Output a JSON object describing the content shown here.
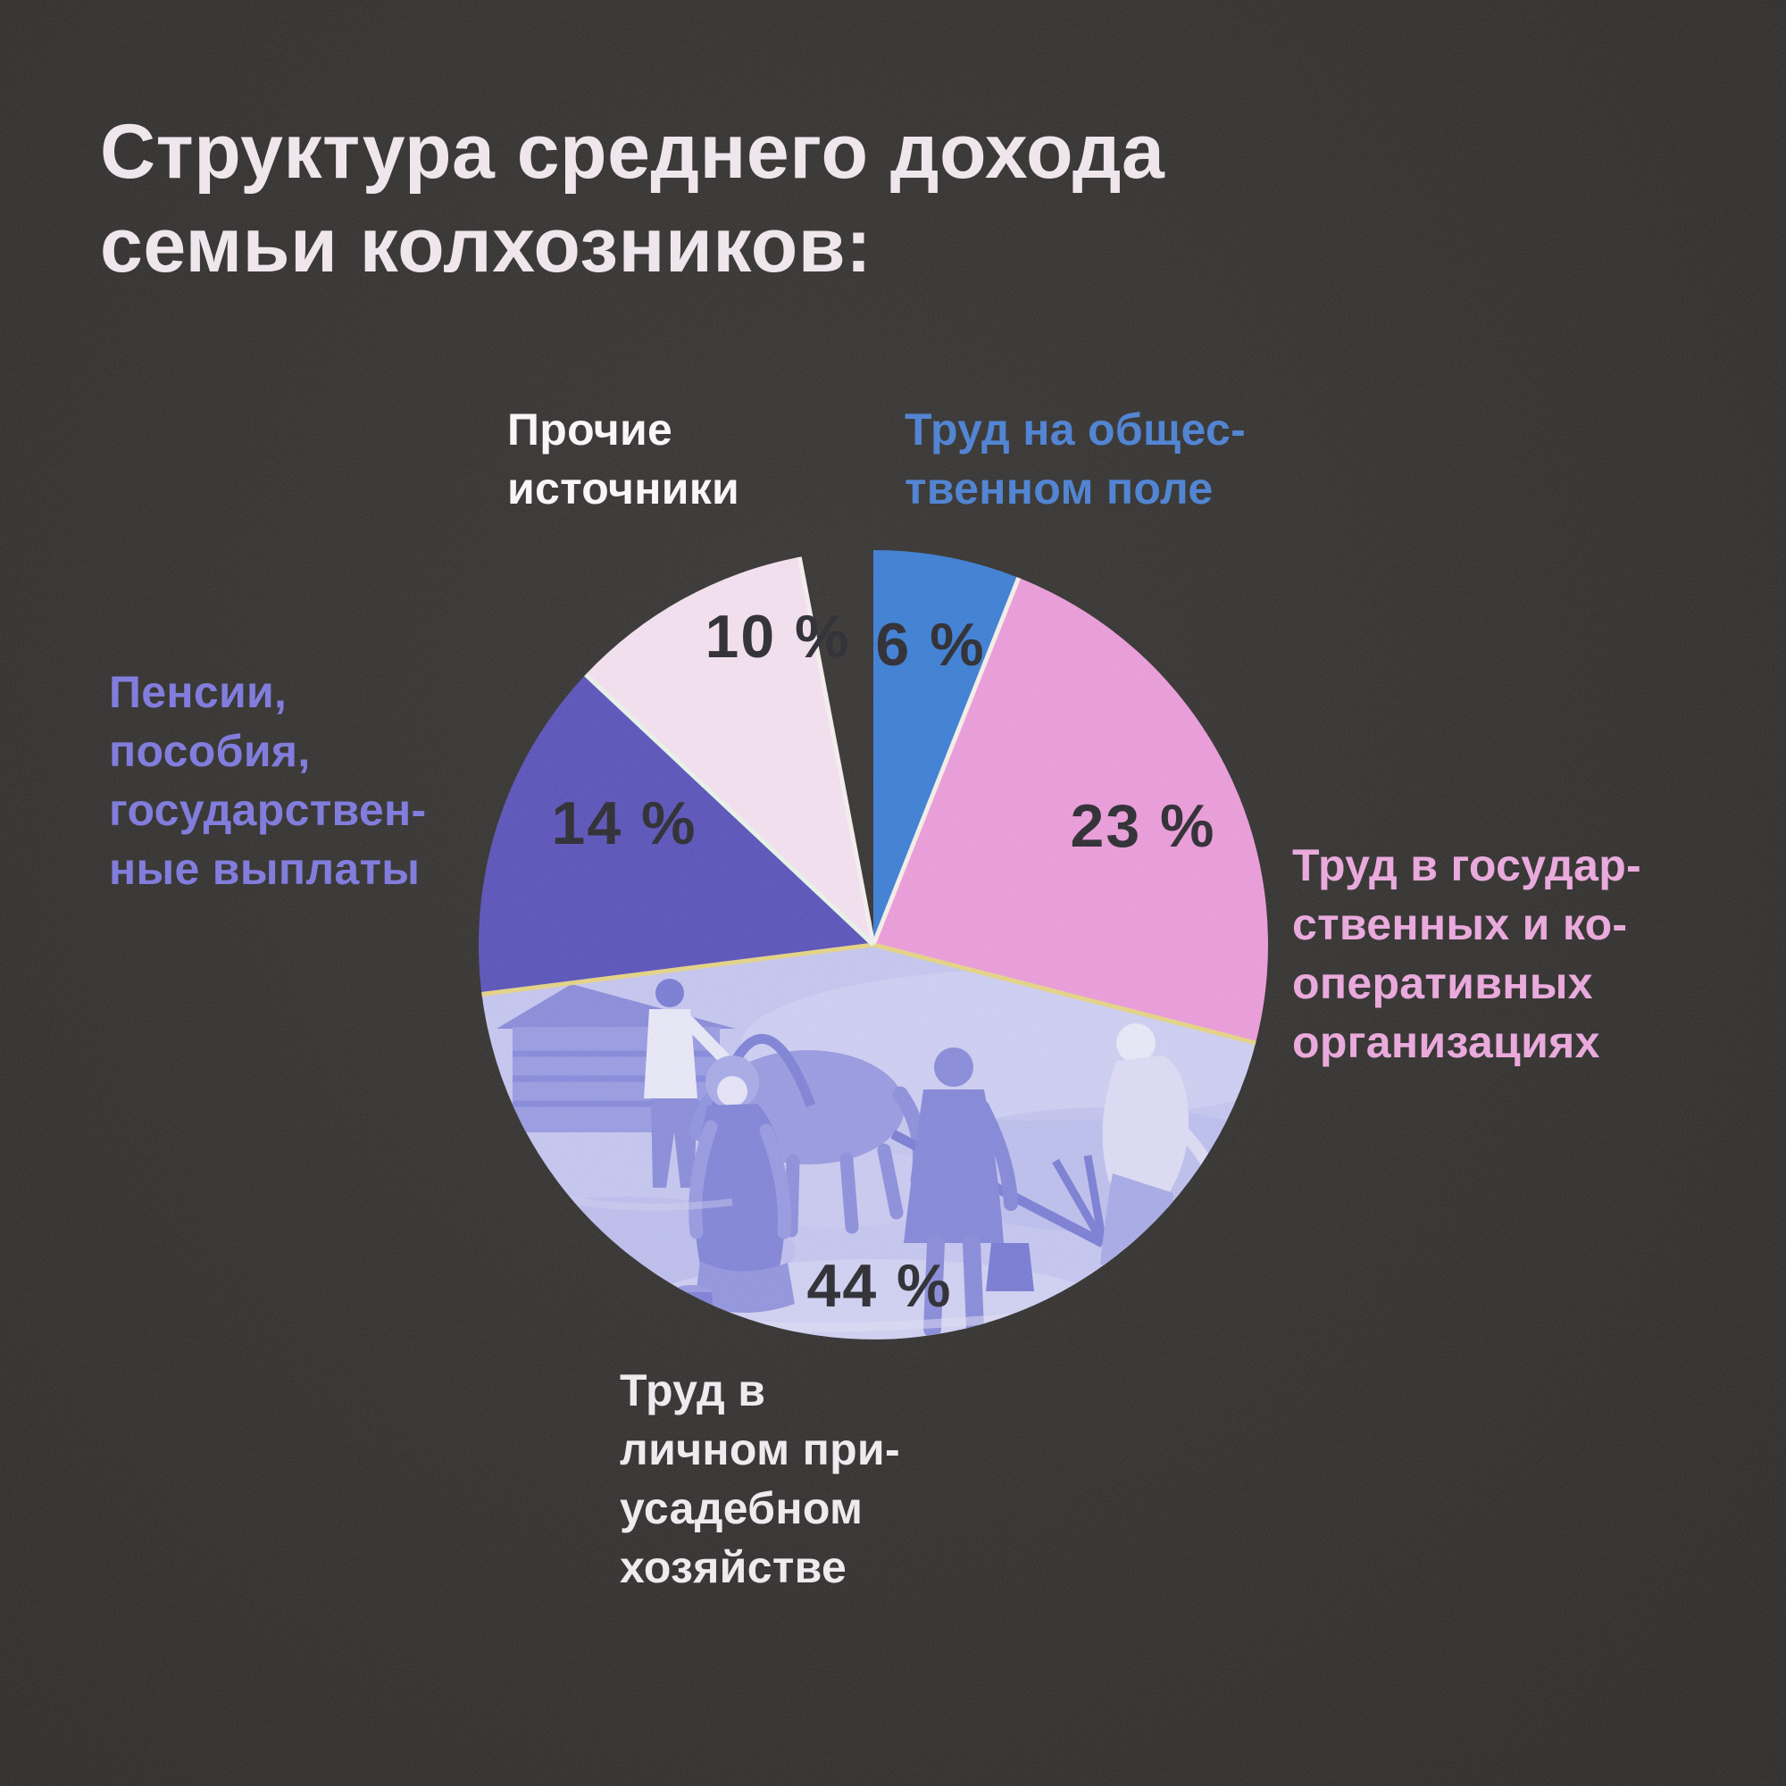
{
  "page": {
    "background_color": "#353331"
  },
  "title": {
    "lines": [
      "Структура среднего дохода",
      "семьи колхозников:"
    ],
    "color": "#f2e9ef"
  },
  "chart_data": {
    "type": "pie",
    "title": "Структура среднего дохода семьи колхозников",
    "direction": "clockwise",
    "start_angle_deg": 0,
    "slices": [
      {
        "label": "Труд на общественном поле",
        "value_pct": 6,
        "value_label": "6 %",
        "color": "#3f80d5"
      },
      {
        "label": "Труд в государственных и кооперативных организациях",
        "value_pct": 23,
        "value_label": "23 %",
        "color": "#eb9dda"
      },
      {
        "label": "Труд в личном приусадебном хозяйстве",
        "value_pct": 44,
        "value_label": "44 %",
        "color": "#c6c7f0",
        "photo": true
      },
      {
        "label": "Пенсии, пособия, государственные выплаты",
        "value_pct": 14,
        "value_label": "14 %",
        "color": "#5c55bb"
      },
      {
        "label": "Прочие источники",
        "value_pct": 10,
        "value_label": "10 %",
        "color": "#f4e1f1"
      }
    ],
    "divider_colors": [
      "#f6efe9",
      "#e5d488",
      "#e5d488",
      "#e9f4ea",
      "#f5f0ef"
    ],
    "value_label_color": "#2e2d33",
    "legend_position": "around-pie",
    "grid": false
  },
  "labels": {
    "other_sources": {
      "color": "#fcf9fb",
      "line1": "Прочие",
      "line2": "источники"
    },
    "public_field": {
      "color": "#4d82d4",
      "line1": "Труд на общес-",
      "line2": "твенном поле"
    },
    "pensions": {
      "color": "#7f7ade",
      "line1": "Пенсии,",
      "line2": "пособия,",
      "line3": "государствен-",
      "line4": "ные выплаты"
    },
    "state_orgs": {
      "color": "#eca9de",
      "line1": "Труд в государ-",
      "line2": "ственных и ко-",
      "line3": "оперативных",
      "line4": "организациях"
    },
    "household": {
      "color": "#f1edf2",
      "line1": "Труд в",
      "line2": "личном при-",
      "line3": "усадебном",
      "line4": "хозяйстве"
    }
  }
}
